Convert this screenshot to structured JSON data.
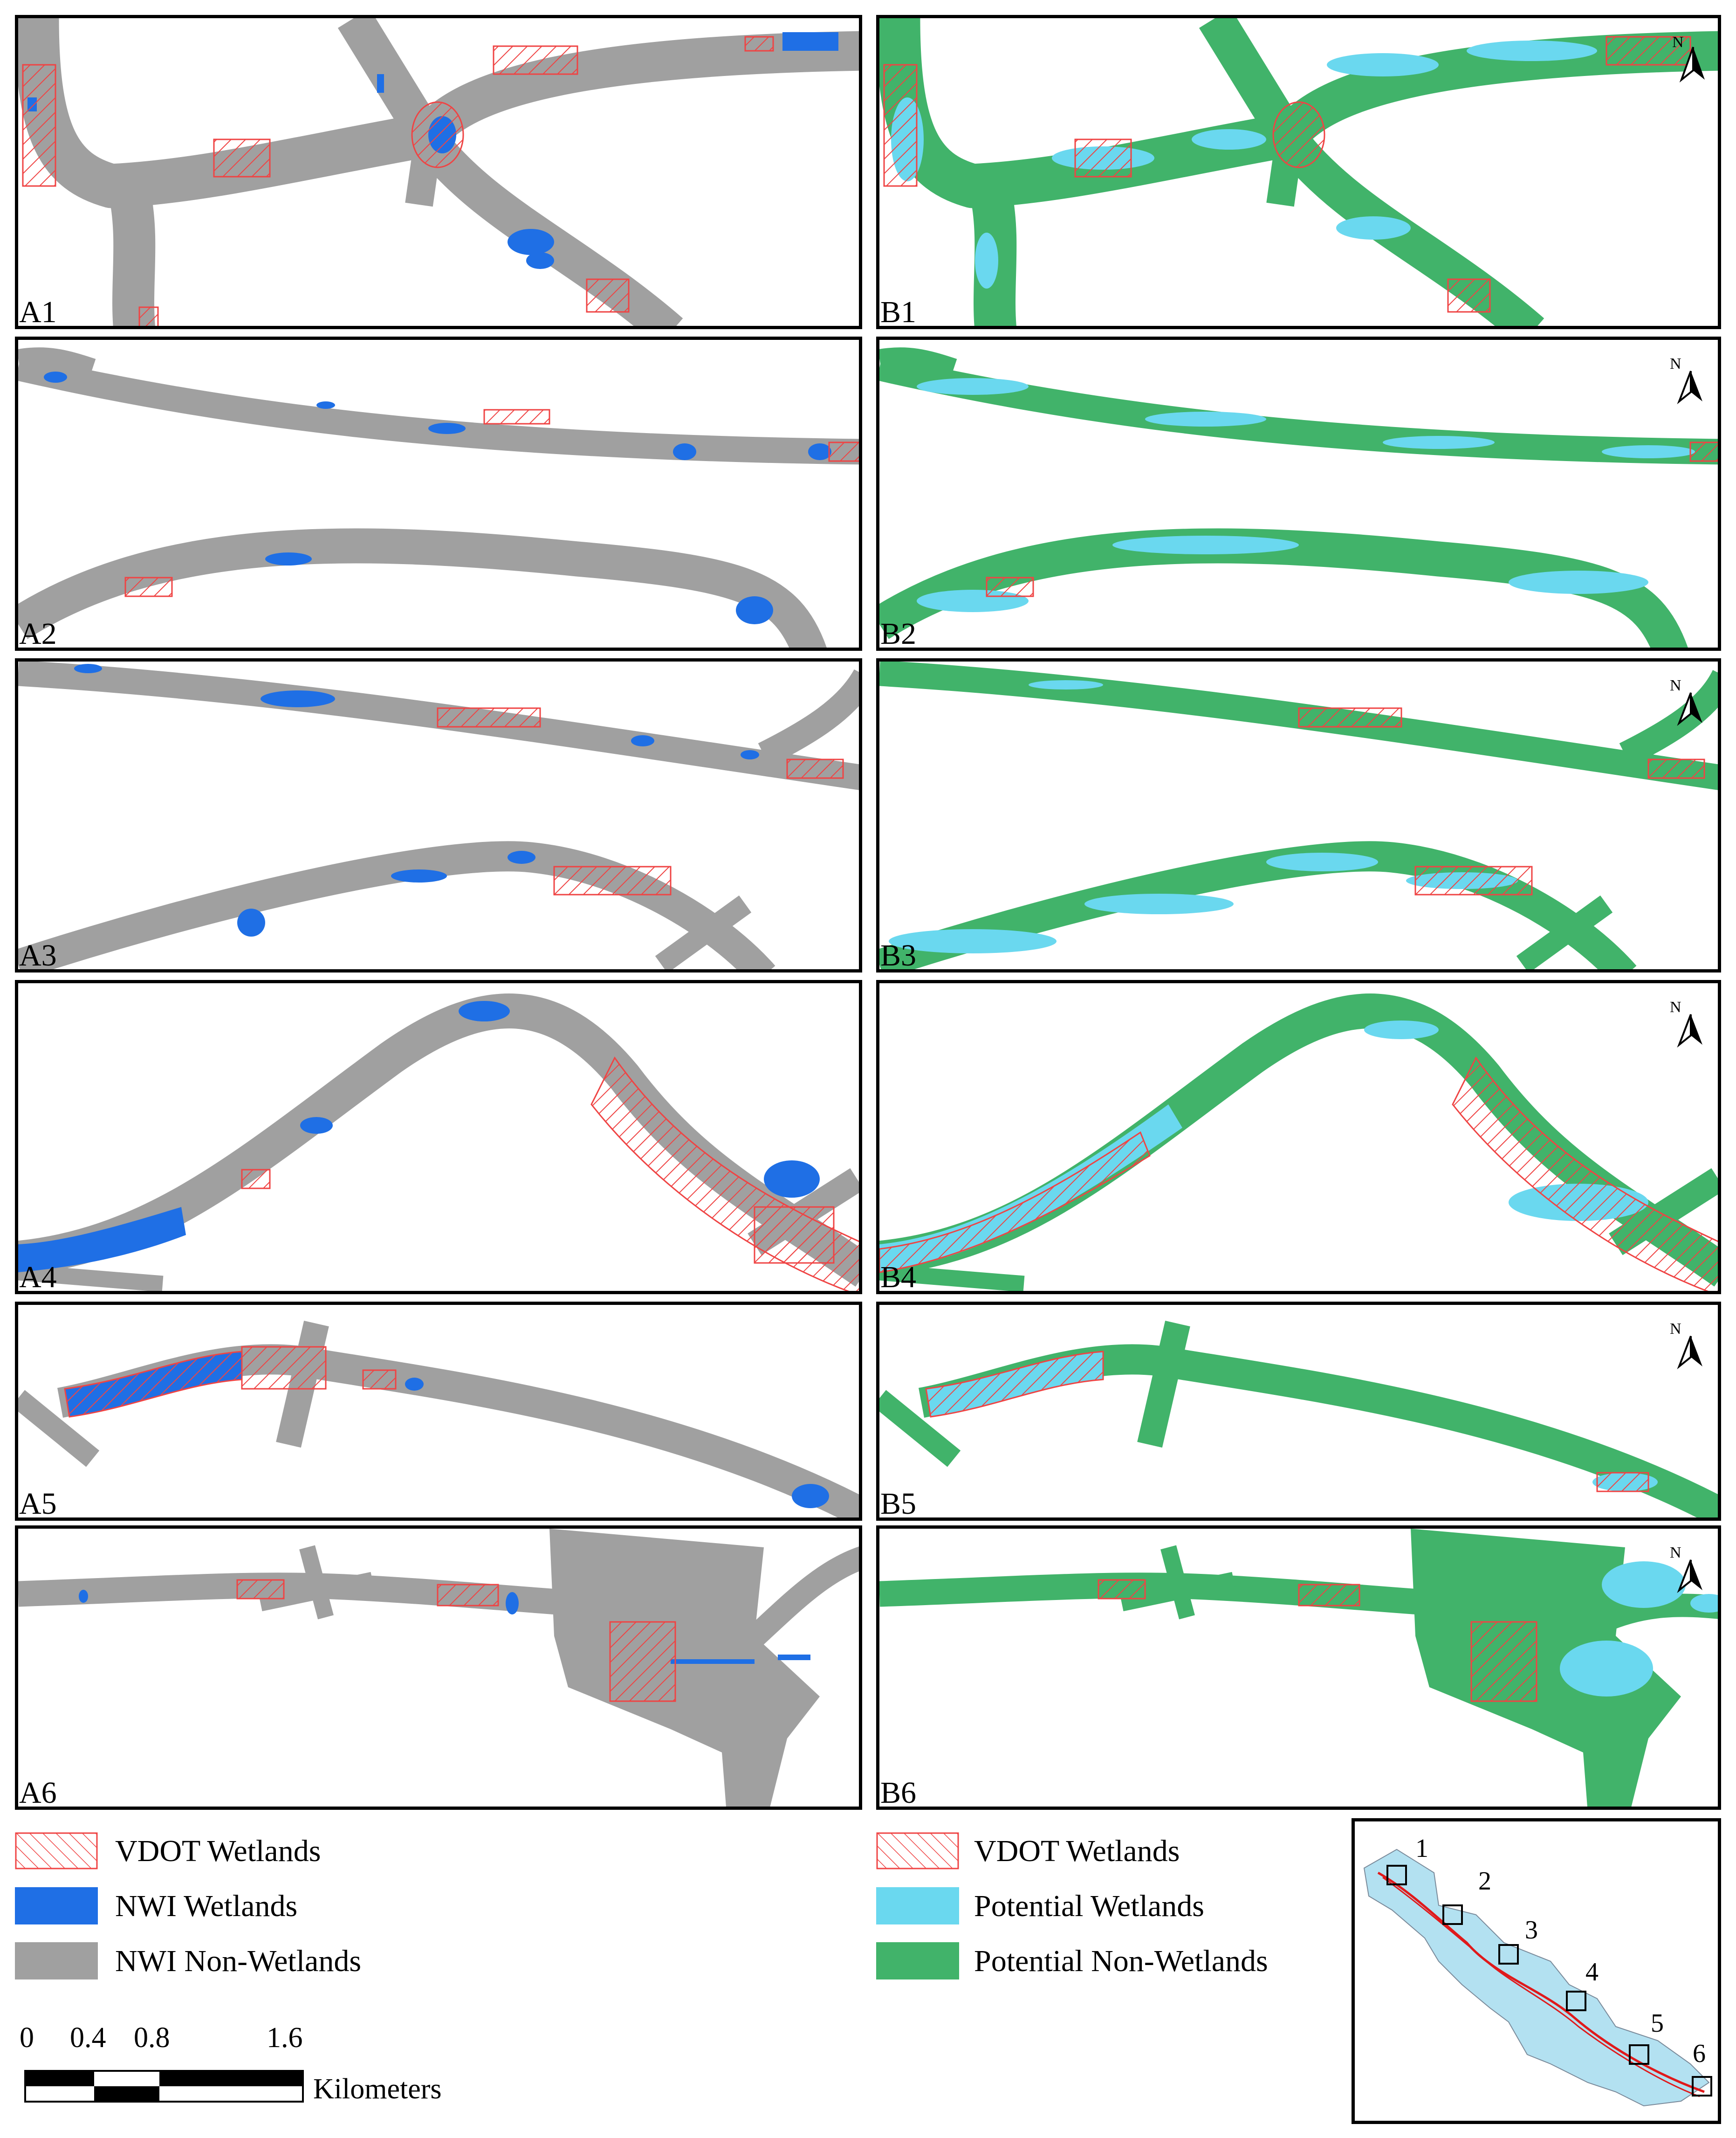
{
  "panels_a": [
    "A1",
    "A2",
    "A3",
    "A4",
    "A5",
    "A6"
  ],
  "panels_b": [
    "B1",
    "B2",
    "B3",
    "B4",
    "B5",
    "B6"
  ],
  "colors": {
    "vdot": "#ef4444",
    "nwi_wetlands": "#1f6fe5",
    "nwi_non_wetlands": "#a0a0a0",
    "potential_wetlands": "#6ad8ef",
    "potential_non_wetlands": "#41b36a",
    "study_area_fill": "#b3e1f1",
    "study_line": "#e0191b"
  },
  "legend_left": {
    "vdot": "VDOT Wetlands",
    "nwi_wet": "NWI Wetlands",
    "nwi_non": "NWI Non-Wetlands"
  },
  "legend_right": {
    "vdot": "VDOT Wetlands",
    "pot_wet": "Potential Wetlands",
    "pot_non": "Potential Non-Wetlands"
  },
  "scale": {
    "ticks": [
      "0",
      "0.4",
      "0.8",
      "1.6"
    ],
    "unit": "Kilometers"
  },
  "north_letter": "N",
  "inset_labels": [
    "1",
    "2",
    "3",
    "4",
    "5",
    "6"
  ]
}
